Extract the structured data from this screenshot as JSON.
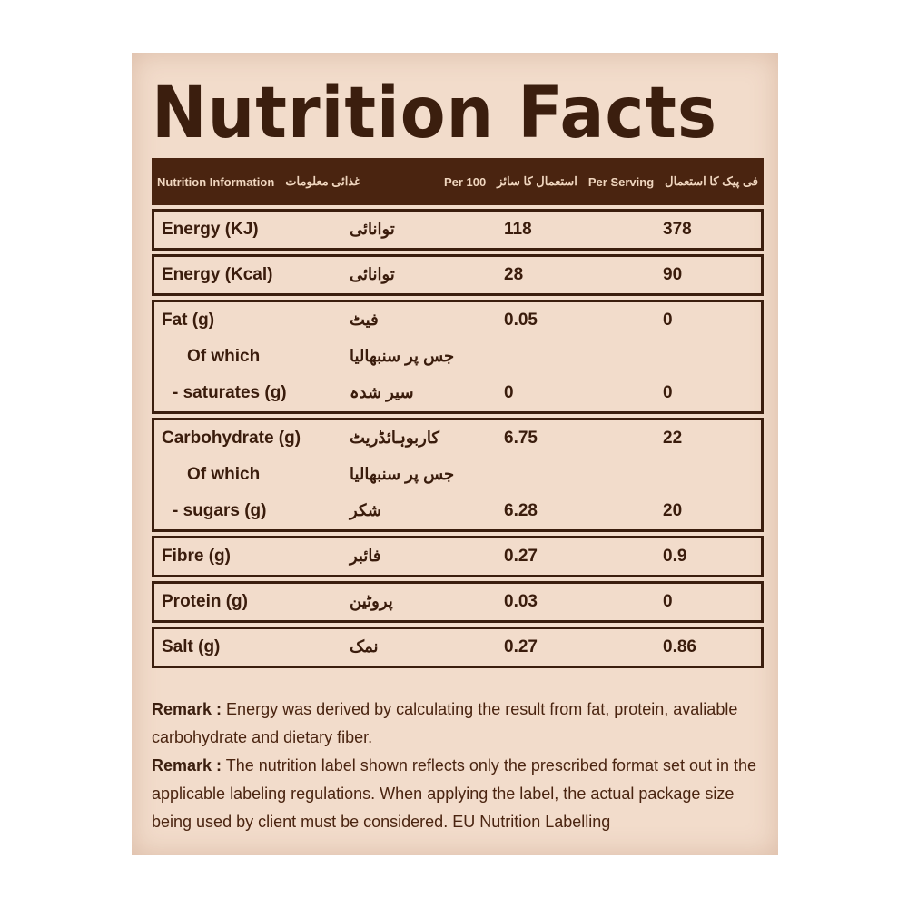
{
  "title": "Nutrition Facts",
  "header": {
    "info": "Nutrition Information",
    "info_ur": "غذائی معلومات",
    "per100": "Per 100",
    "per100_ur": "استعمال کا سائز",
    "serving": "Per Serving",
    "serving_ur": "فی پیک کا استعمال"
  },
  "rows": [
    {
      "lines": [
        {
          "en": "Energy (KJ)",
          "ur": "توانائی",
          "per100": "118",
          "serving": "378"
        }
      ]
    },
    {
      "lines": [
        {
          "en": "Energy (Kcal)",
          "ur": "توانائی",
          "per100": "28",
          "serving": "90"
        }
      ]
    },
    {
      "lines": [
        {
          "en": "Fat (g)",
          "ur": "فیٹ",
          "per100": "0.05",
          "serving": "0"
        },
        {
          "en": "Of which",
          "ur": "جس پر سنبھالیا",
          "per100": "",
          "serving": ""
        },
        {
          "en": "- saturates (g)",
          "ur": "سیر شدہ",
          "per100": "0",
          "serving": "0"
        }
      ]
    },
    {
      "lines": [
        {
          "en": "Carbohydrate (g)",
          "ur": "کاربوہائڈریٹ",
          "per100": "6.75",
          "serving": "22"
        },
        {
          "en": "Of which",
          "ur": "جس پر سنبھالیا",
          "per100": "",
          "serving": ""
        },
        {
          "en": "- sugars (g)",
          "ur": "شکر",
          "per100": "6.28",
          "serving": "20"
        }
      ]
    },
    {
      "lines": [
        {
          "en": "Fibre (g)",
          "ur": "فائبر",
          "per100": "0.27",
          "serving": "0.9"
        }
      ]
    },
    {
      "lines": [
        {
          "en": "Protein (g)",
          "ur": "پروٹین",
          "per100": "0.03",
          "serving": "0"
        }
      ]
    },
    {
      "lines": [
        {
          "en": "Salt (g)",
          "ur": "نمک",
          "per100": "0.27",
          "serving": "0.86"
        }
      ]
    }
  ],
  "remarks": [
    {
      "label": "Remark :",
      "text": " Energy was derived by calculating the result from fat, protein, avaliable carbohydrate and dietary fiber."
    },
    {
      "label": "Remark :",
      "text": " The nutrition label shown reflects only the prescribed format set out in the applicable labeling regulations. When applying the label, the actual package size being used by client must be considered. EU Nutrition Labelling"
    }
  ]
}
